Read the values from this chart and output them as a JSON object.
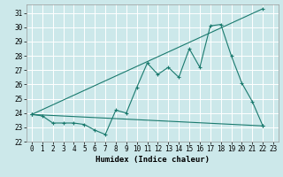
{
  "title": "",
  "xlabel": "Humidex (Indice chaleur)",
  "bg_color": "#cce8ea",
  "grid_color": "#ffffff",
  "line_color": "#1a7a6e",
  "xlim": [
    -0.5,
    23.5
  ],
  "ylim": [
    22,
    31.6
  ],
  "yticks": [
    22,
    23,
    24,
    25,
    26,
    27,
    28,
    29,
    30,
    31
  ],
  "xticks": [
    0,
    1,
    2,
    3,
    4,
    5,
    6,
    7,
    8,
    9,
    10,
    11,
    12,
    13,
    14,
    15,
    16,
    17,
    18,
    19,
    20,
    21,
    22,
    23
  ],
  "line_min": {
    "x": [
      0,
      22
    ],
    "y": [
      23.9,
      23.1
    ]
  },
  "line_max": {
    "x": [
      0,
      22
    ],
    "y": [
      23.9,
      31.3
    ]
  },
  "line_actual": {
    "x": [
      0,
      1,
      2,
      3,
      4,
      5,
      6,
      7,
      8,
      9,
      10,
      11,
      12,
      13,
      14,
      15,
      16,
      17,
      18,
      19,
      20,
      21,
      22
    ],
    "y": [
      23.9,
      23.8,
      23.3,
      23.3,
      23.3,
      23.2,
      22.8,
      22.5,
      24.2,
      24.0,
      25.8,
      27.5,
      26.7,
      27.2,
      26.5,
      28.5,
      27.2,
      30.1,
      30.2,
      28.0,
      26.1,
      24.8,
      23.1
    ]
  }
}
